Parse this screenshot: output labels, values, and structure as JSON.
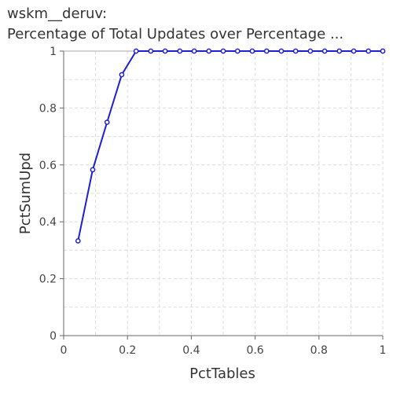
{
  "chart_data": {
    "type": "line",
    "title_line1": "wskm__deruv:",
    "title_line2": "Percentage of Total Updates over Percentage ...",
    "xlabel": "PctTables",
    "ylabel": "PctSumUpd",
    "xlim": [
      0,
      1
    ],
    "ylim": [
      0,
      1
    ],
    "x_ticks": [
      "0",
      "0.2",
      "0.4",
      "0.6",
      "0.8",
      "1"
    ],
    "y_ticks": [
      "0",
      "0.2",
      "0.4",
      "0.6",
      "0.8",
      "1"
    ],
    "grid": true,
    "series": [
      {
        "color": "#1f1fd6",
        "x": [
          0.045,
          0.091,
          0.136,
          0.182,
          0.227,
          0.273,
          0.318,
          0.364,
          0.409,
          0.455,
          0.5,
          0.545,
          0.591,
          0.636,
          0.682,
          0.727,
          0.773,
          0.818,
          0.864,
          0.909,
          0.955,
          1.0
        ],
        "y": [
          0.333,
          0.583,
          0.75,
          0.917,
          1,
          1,
          1,
          1,
          1,
          1,
          1,
          1,
          1,
          1,
          1,
          1,
          1,
          1,
          1,
          1,
          1,
          1
        ]
      }
    ]
  }
}
